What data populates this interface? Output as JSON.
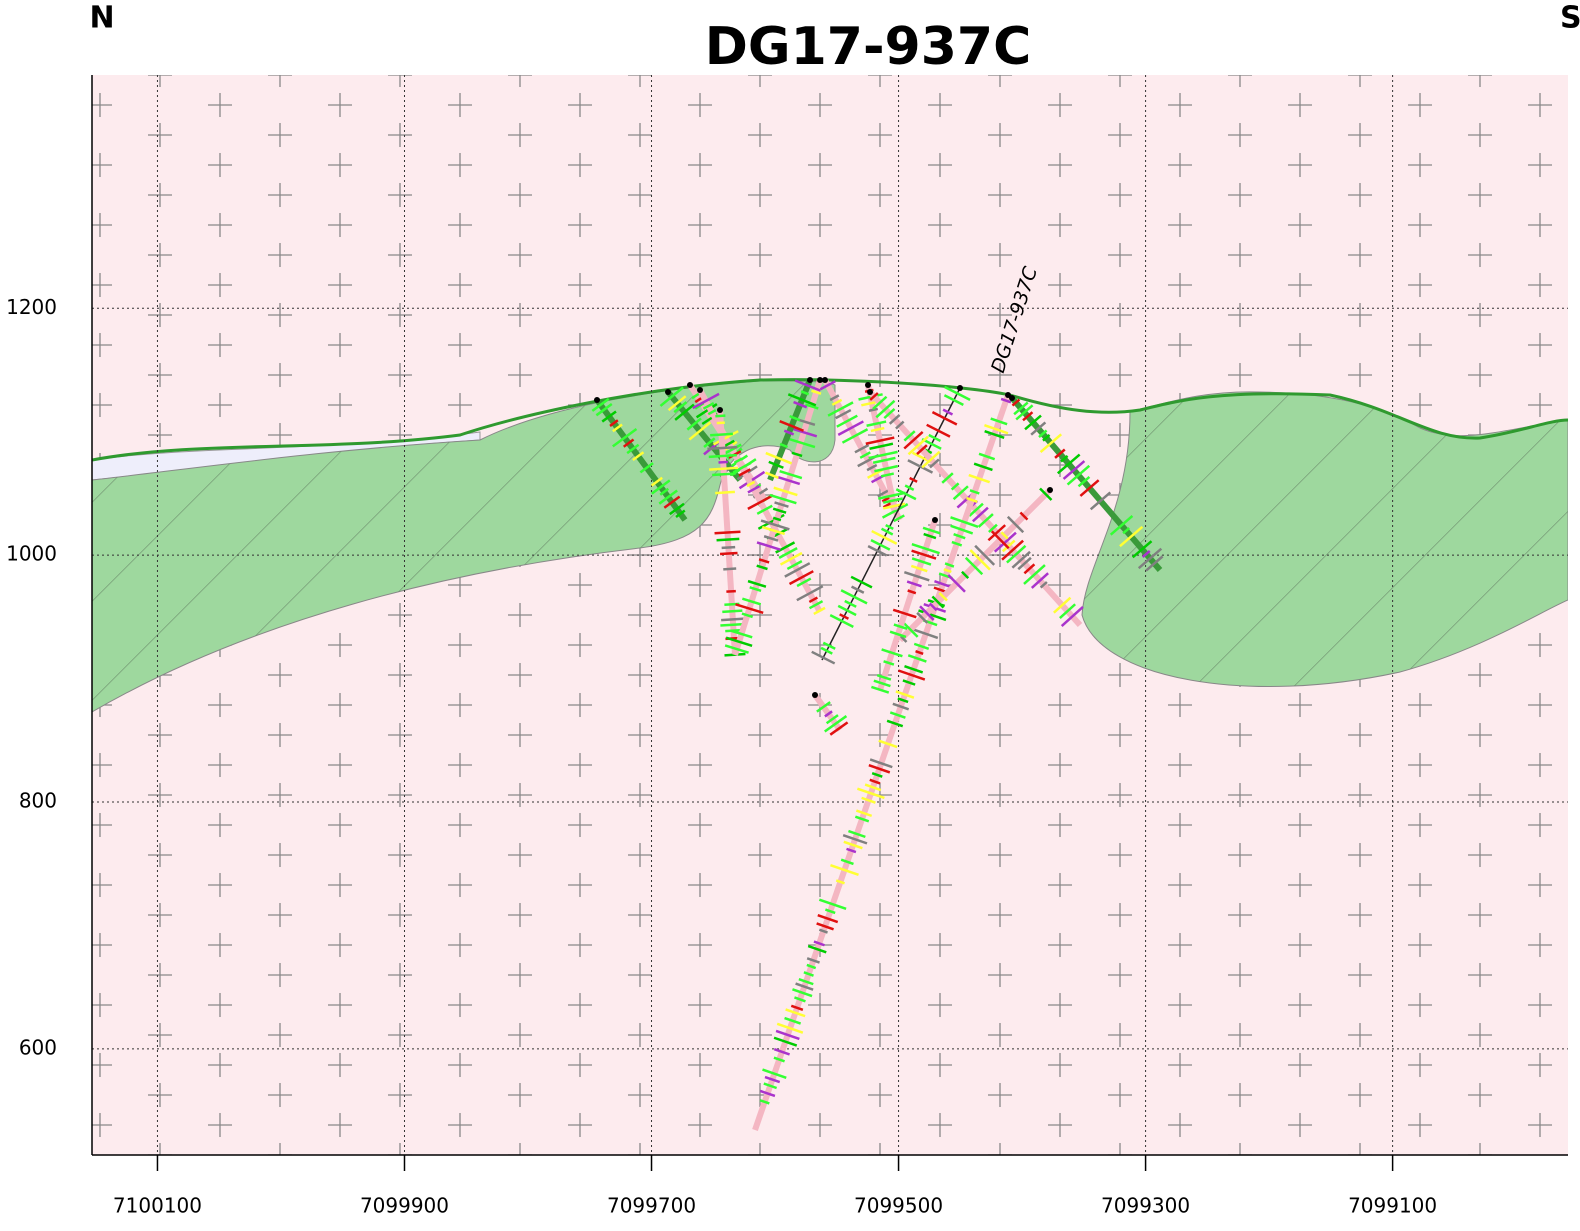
{
  "map": {
    "title": "DG17-937C",
    "north": "N",
    "south": "S",
    "hole_label": "DG17-937C",
    "x_axis": {
      "ticks": [
        7100100,
        7099900,
        7099700,
        7099500,
        7099300,
        7099100
      ],
      "lim": [
        7100153,
        7098958
      ]
    },
    "y_axis": {
      "ticks": [
        600,
        800,
        1000,
        1200
      ],
      "lim": [
        514,
        1389
      ]
    }
  }
}
